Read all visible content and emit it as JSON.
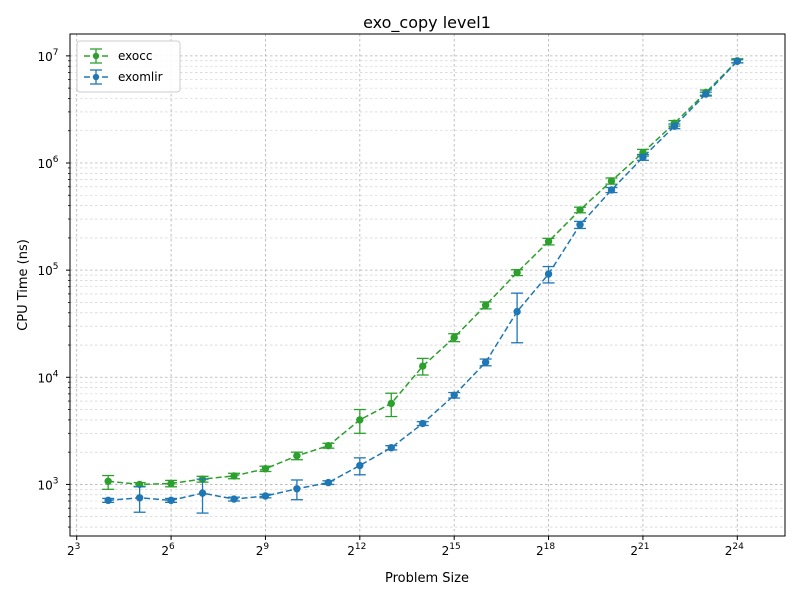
{
  "chart_data": {
    "type": "line",
    "title": "exo_copy level1",
    "xlabel": "Problem Size",
    "ylabel": "CPU Time (ns)",
    "xscale": "log2",
    "yscale": "log10",
    "xlim": [
      6.9,
      48000000
    ],
    "ylim": [
      330,
      16000000
    ],
    "grid": true,
    "legend_position": "top-left",
    "x_ticks": [
      {
        "base": "2",
        "exp": "3",
        "value": 8
      },
      {
        "base": "2",
        "exp": "6",
        "value": 64
      },
      {
        "base": "2",
        "exp": "9",
        "value": 512
      },
      {
        "base": "2",
        "exp": "12",
        "value": 4096
      },
      {
        "base": "2",
        "exp": "15",
        "value": 32768
      },
      {
        "base": "2",
        "exp": "18",
        "value": 262144
      },
      {
        "base": "2",
        "exp": "21",
        "value": 2097152
      },
      {
        "base": "2",
        "exp": "24",
        "value": 16777216
      }
    ],
    "y_ticks": [
      {
        "base": "10",
        "exp": "3",
        "value": 1000
      },
      {
        "base": "10",
        "exp": "4",
        "value": 10000
      },
      {
        "base": "10",
        "exp": "5",
        "value": 100000
      },
      {
        "base": "10",
        "exp": "6",
        "value": 1000000
      },
      {
        "base": "10",
        "exp": "7",
        "value": 10000000
      }
    ],
    "x": [
      16,
      32,
      64,
      128,
      256,
      512,
      1024,
      2048,
      4096,
      8192,
      16384,
      32768,
      65536,
      131072,
      262144,
      524288,
      1048576,
      2097152,
      4194304,
      8388608,
      16777216
    ],
    "series": [
      {
        "name": "exocc",
        "color": "#2ca02c",
        "values": [
          1070,
          1000,
          1020,
          1120,
          1200,
          1400,
          1850,
          2300,
          4000,
          5700,
          12700,
          23500,
          47000,
          95000,
          185000,
          365000,
          680000,
          1250000,
          2350000,
          4550000,
          9000000
        ],
        "err_low": [
          900,
          960,
          950,
          1050,
          1130,
          1320,
          1700,
          2180,
          3000,
          4300,
          10500,
          21500,
          43500,
          89000,
          172000,
          343000,
          635000,
          1160000,
          2210000,
          4300000,
          8600000
        ],
        "err_high": [
          1210,
          1040,
          1090,
          1190,
          1270,
          1480,
          2000,
          2420,
          5000,
          7100,
          15000,
          25500,
          50500,
          101000,
          198000,
          387000,
          725000,
          1340000,
          2490000,
          4800000,
          9400000
        ]
      },
      {
        "name": "exomlir",
        "color": "#1f77b4",
        "values": [
          710,
          750,
          710,
          830,
          730,
          780,
          910,
          1040,
          1500,
          2200,
          3700,
          6800,
          13800,
          41000,
          92000,
          265000,
          560000,
          1130000,
          2200000,
          4400000,
          8900000
        ],
        "err_low": [
          680,
          550,
          680,
          540,
          700,
          750,
          720,
          1000,
          1230,
          2100,
          3550,
          6400,
          12800,
          21000,
          76000,
          245000,
          530000,
          1060000,
          2090000,
          4220000,
          8600000
        ],
        "err_high": [
          740,
          950,
          740,
          1120,
          760,
          810,
          1100,
          1080,
          1770,
          2300,
          3850,
          7200,
          14800,
          61000,
          108000,
          285000,
          590000,
          1200000,
          2310000,
          4580000,
          9200000
        ]
      }
    ]
  }
}
